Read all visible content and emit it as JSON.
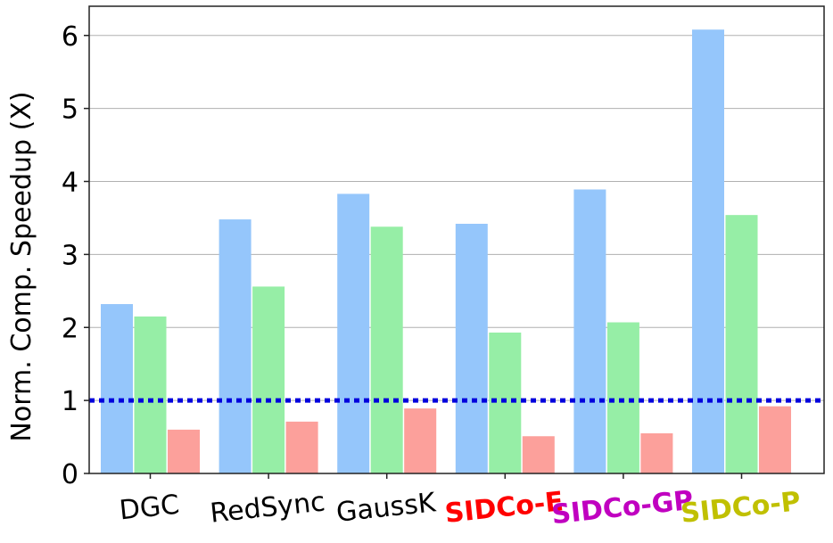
{
  "chart_data": {
    "type": "bar",
    "title": "",
    "xlabel": "",
    "ylabel": "Norm. Comp. Speedup (X)",
    "ylim": [
      0,
      6.4
    ],
    "yticks": [
      0,
      1,
      2,
      3,
      4,
      5,
      6
    ],
    "grid": "y",
    "reference_line": {
      "y": 1,
      "color": "#0000dd",
      "style": "dotted"
    },
    "categories": [
      "DGC",
      "RedSync",
      "GaussK",
      "SIDCo-E",
      "SIDCo-GP",
      "SIDCo-P"
    ],
    "category_colors": [
      "#000000",
      "#000000",
      "#000000",
      "#ff0000",
      "#c000c0",
      "#c0c000"
    ],
    "category_bold": [
      false,
      false,
      false,
      true,
      true,
      true
    ],
    "series": [
      {
        "color": "#95c6fb",
        "values": [
          2.32,
          3.48,
          3.83,
          3.42,
          3.89,
          6.08
        ]
      },
      {
        "color": "#96eea6",
        "values": [
          2.15,
          2.56,
          3.38,
          1.93,
          2.07,
          3.54
        ]
      },
      {
        "color": "#fca09b",
        "values": [
          0.6,
          0.71,
          0.89,
          0.51,
          0.55,
          0.92
        ]
      }
    ]
  }
}
